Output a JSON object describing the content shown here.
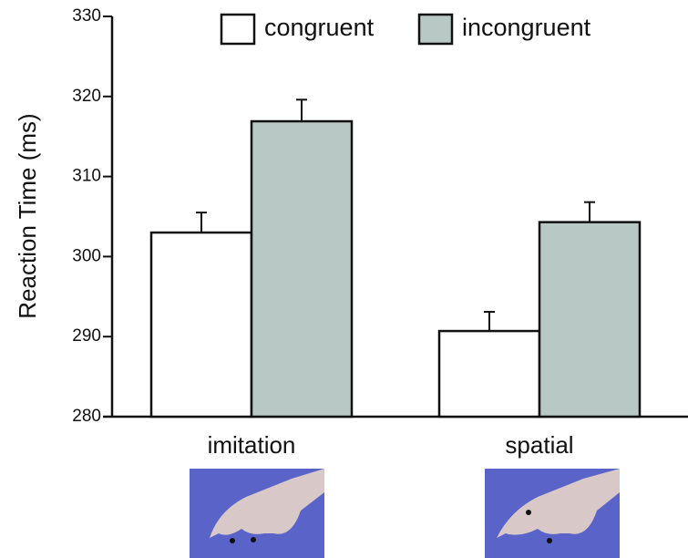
{
  "chart_data": {
    "type": "bar",
    "y_label": "Reaction Time (ms)",
    "categories": [
      "imitation",
      "spatial"
    ],
    "series": [
      {
        "name": "congruent",
        "color": "#ffffff",
        "values": [
          303,
          290.7
        ],
        "errors": [
          2.5,
          2.4
        ]
      },
      {
        "name": "incongruent",
        "color": "#b8c8c4",
        "values": [
          316.9,
          304.3
        ],
        "errors": [
          2.7,
          2.5
        ]
      }
    ],
    "ylim": [
      280,
      330
    ],
    "yticks": [
      280,
      290,
      300,
      310,
      320,
      330
    ],
    "grid": false,
    "legend": "top"
  }
}
